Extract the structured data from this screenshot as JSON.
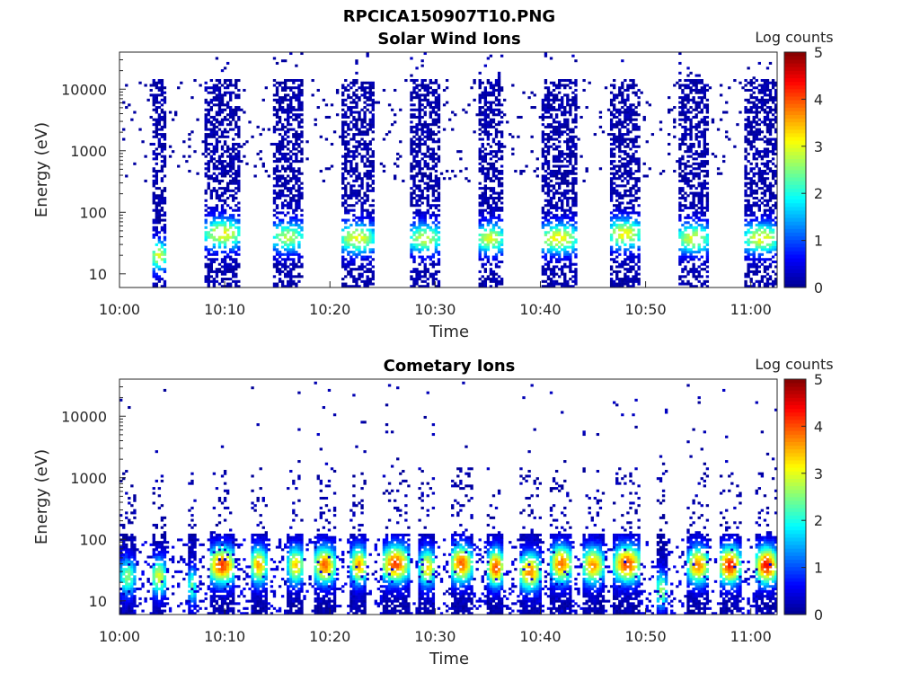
{
  "figure_title": "RPCICA150907T10.PNG",
  "colors": {
    "colormap": [
      "#00008f",
      "#0000ff",
      "#0080ff",
      "#00ffff",
      "#80ff80",
      "#ffff00",
      "#ff8000",
      "#ff0000",
      "#800000"
    ],
    "axis": "#262626"
  },
  "chart_data": [
    {
      "type": "heatmap",
      "title": "Solar Wind Ions",
      "xlabel": "Time",
      "ylabel": "Energy (eV)",
      "colorbar_label": "Log counts",
      "x_ticks": [
        "10:00",
        "10:10",
        "10:20",
        "10:30",
        "10:40",
        "10:50",
        "11:00"
      ],
      "y_ticks": [
        "10",
        "100",
        "1000",
        "10000"
      ],
      "colorbar_ticks": [
        "0",
        "1",
        "2",
        "3",
        "4",
        "5"
      ],
      "xlim_minutes": [
        0,
        62.5
      ],
      "ylim": [
        6,
        40000
      ],
      "y_scale": "log",
      "clim": [
        0,
        5
      ],
      "pattern": "periodic scans every ~6.4 min; each burst spans ~10-15000 eV with solar wind peak ~20-50 eV (log counts ~2-3)",
      "bursts": [
        {
          "start": 3.0,
          "end": 4.5,
          "peak_eV": 20,
          "peak_log": 2.8
        },
        {
          "start": 8.2,
          "end": 11.5,
          "peak_eV": 45,
          "peak_log": 3.0
        },
        {
          "start": 14.5,
          "end": 17.5,
          "peak_eV": 40,
          "peak_log": 2.6
        },
        {
          "start": 21.0,
          "end": 24.2,
          "peak_eV": 38,
          "peak_log": 2.9
        },
        {
          "start": 27.5,
          "end": 30.5,
          "peak_eV": 38,
          "peak_log": 2.7
        },
        {
          "start": 34.0,
          "end": 36.5,
          "peak_eV": 38,
          "peak_log": 2.8
        },
        {
          "start": 40.0,
          "end": 43.5,
          "peak_eV": 38,
          "peak_log": 3.0
        },
        {
          "start": 46.5,
          "end": 49.5,
          "peak_eV": 45,
          "peak_log": 3.0
        },
        {
          "start": 53.0,
          "end": 56.0,
          "peak_eV": 38,
          "peak_log": 2.8
        },
        {
          "start": 59.5,
          "end": 62.5,
          "peak_eV": 38,
          "peak_log": 3.0
        }
      ]
    },
    {
      "type": "heatmap",
      "title": "Cometary Ions",
      "xlabel": "Time",
      "ylabel": "Energy (eV)",
      "colorbar_label": "Log counts",
      "x_ticks": [
        "10:00",
        "10:10",
        "10:20",
        "10:30",
        "10:40",
        "10:50",
        "11:00"
      ],
      "y_ticks": [
        "10",
        "100",
        "1000",
        "10000"
      ],
      "colorbar_ticks": [
        "0",
        "1",
        "2",
        "3",
        "4",
        "5"
      ],
      "xlim_minutes": [
        0,
        62.5
      ],
      "ylim": [
        6,
        40000
      ],
      "y_scale": "log",
      "clim": [
        0,
        5
      ],
      "pattern": "continuous low-energy band ~10-100 eV with peaks ~30-40 eV (log counts ~3.5-4.2), sparse counts up to ~20000 eV",
      "bursts": [
        {
          "start": 0.0,
          "end": 1.5,
          "peak_eV": 25,
          "peak_log": 2.4
        },
        {
          "start": 3.0,
          "end": 4.5,
          "peak_eV": 25,
          "peak_log": 2.8
        },
        {
          "start": 6.5,
          "end": 7.3,
          "peak_eV": 18,
          "peak_log": 2.2
        },
        {
          "start": 8.5,
          "end": 11.0,
          "peak_eV": 38,
          "peak_log": 3.9
        },
        {
          "start": 12.5,
          "end": 14.0,
          "peak_eV": 38,
          "peak_log": 3.4
        },
        {
          "start": 16.0,
          "end": 17.5,
          "peak_eV": 38,
          "peak_log": 3.2
        },
        {
          "start": 18.5,
          "end": 20.5,
          "peak_eV": 38,
          "peak_log": 3.7
        },
        {
          "start": 22.0,
          "end": 23.5,
          "peak_eV": 38,
          "peak_log": 3.5
        },
        {
          "start": 25.0,
          "end": 27.5,
          "peak_eV": 40,
          "peak_log": 3.9
        },
        {
          "start": 28.5,
          "end": 30.0,
          "peak_eV": 35,
          "peak_log": 3.2
        },
        {
          "start": 31.5,
          "end": 33.5,
          "peak_eV": 40,
          "peak_log": 3.8
        },
        {
          "start": 35.0,
          "end": 36.5,
          "peak_eV": 35,
          "peak_log": 3.9
        },
        {
          "start": 38.0,
          "end": 40.0,
          "peak_eV": 30,
          "peak_log": 3.6
        },
        {
          "start": 41.0,
          "end": 43.0,
          "peak_eV": 40,
          "peak_log": 3.7
        },
        {
          "start": 44.0,
          "end": 46.0,
          "peak_eV": 38,
          "peak_log": 3.5
        },
        {
          "start": 47.0,
          "end": 49.5,
          "peak_eV": 40,
          "peak_log": 3.9
        },
        {
          "start": 51.0,
          "end": 52.0,
          "peak_eV": 15,
          "peak_log": 2.6
        },
        {
          "start": 54.0,
          "end": 56.0,
          "peak_eV": 38,
          "peak_log": 3.6
        },
        {
          "start": 57.0,
          "end": 59.0,
          "peak_eV": 38,
          "peak_log": 4.1
        },
        {
          "start": 60.5,
          "end": 62.5,
          "peak_eV": 38,
          "peak_log": 4.2
        }
      ]
    }
  ]
}
